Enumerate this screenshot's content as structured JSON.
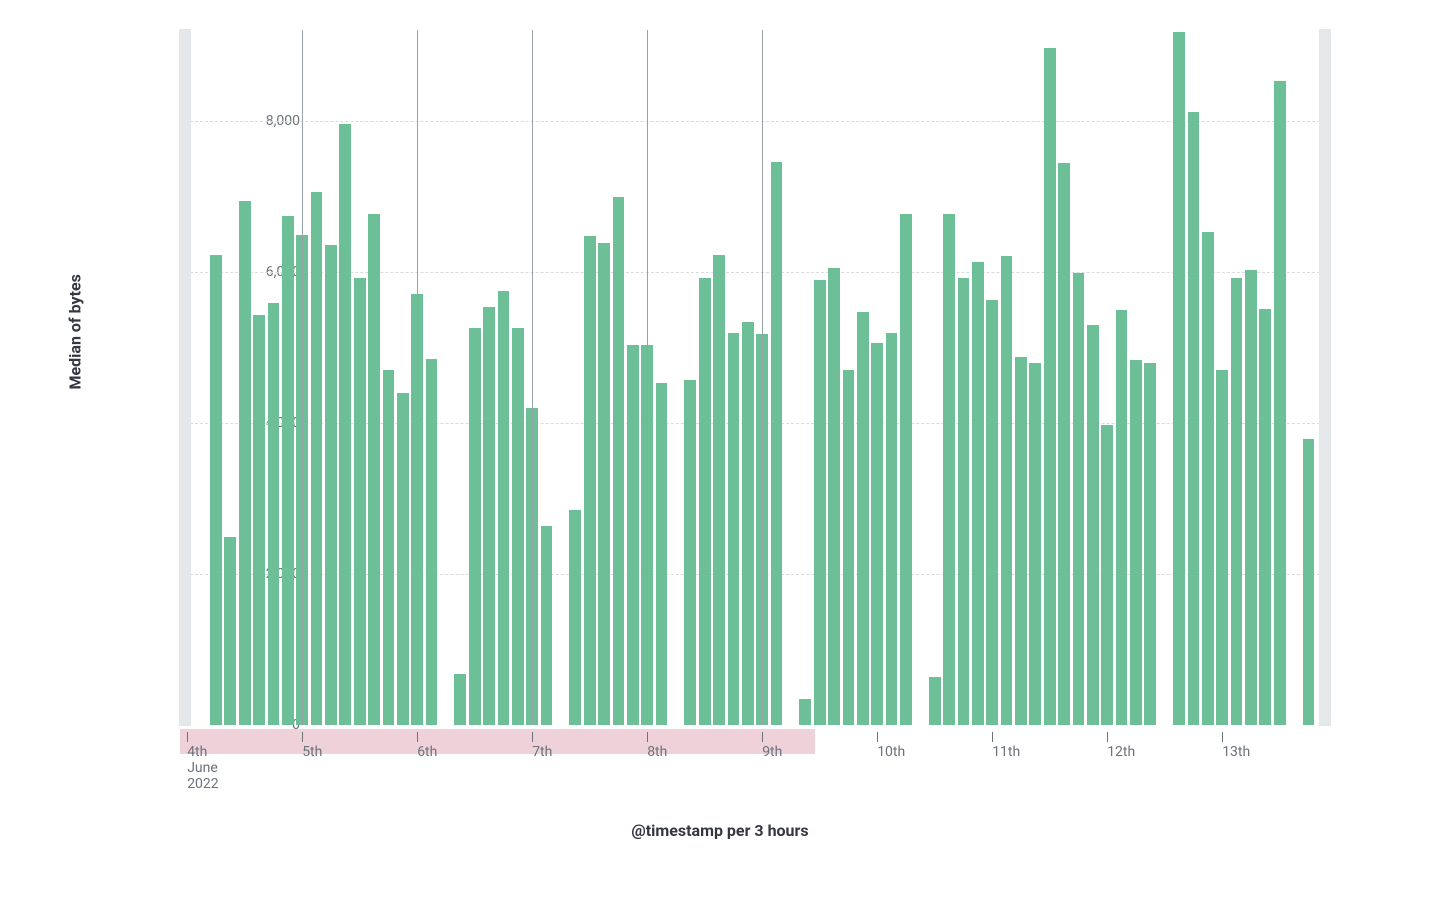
{
  "chart": {
    "type": "bar",
    "y_axis": {
      "label": "Median of bytes",
      "min": 0,
      "max": 9200,
      "ticks": [
        0,
        2000,
        4000,
        6000,
        8000
      ],
      "tick_labels": [
        "0",
        "2,000",
        "4,000",
        "6,000",
        "8,000"
      ],
      "label_fontsize": 16,
      "tick_fontsize": 14,
      "label_color": "#343741",
      "tick_color": "#6c727a",
      "grid_color": "#d8dcdd"
    },
    "x_axis": {
      "label": "@timestamp per 3 hours",
      "label_fontsize": 16,
      "label_color": "#343741",
      "tick_fontsize": 14,
      "tick_color": "#6c727a",
      "ticks": [
        {
          "pos": 0.5,
          "label": "4th",
          "sublabel1": "June",
          "sublabel2": "2022"
        },
        {
          "pos": 8.5,
          "label": "5th"
        },
        {
          "pos": 16.5,
          "label": "6th"
        },
        {
          "pos": 24.5,
          "label": "7th"
        },
        {
          "pos": 32.5,
          "label": "8th"
        },
        {
          "pos": 40.5,
          "label": "9th"
        },
        {
          "pos": 48.5,
          "label": "10th"
        },
        {
          "pos": 56.5,
          "label": "11th"
        },
        {
          "pos": 64.5,
          "label": "12th"
        },
        {
          "pos": 72.5,
          "label": "13th"
        }
      ],
      "gridline_positions": [
        8.5,
        16.5,
        24.5,
        32.5,
        40.5
      ],
      "highlight_start": 0,
      "highlight_end": 44.2,
      "highlight_color": "#efd1d9"
    },
    "bar_color": "#6dbf98",
    "background_color": "#ffffff",
    "partial_band_color": "#e5e8ea",
    "total_slots": 80,
    "bar_width_ratio": 0.82,
    "values": [
      null,
      null,
      6220,
      2490,
      6930,
      5430,
      5590,
      6740,
      6490,
      7050,
      6360,
      7960,
      5920,
      6770,
      4700,
      4390,
      5700,
      4840,
      null,
      680,
      5260,
      5530,
      5750,
      5260,
      4200,
      2640,
      null,
      2850,
      6470,
      6380,
      6990,
      5030,
      5030,
      4530,
      null,
      4570,
      5920,
      6220,
      5190,
      5340,
      5180,
      7450,
      null,
      340,
      5890,
      6050,
      4700,
      5470,
      5060,
      5190,
      6760,
      null,
      640,
      6760,
      5920,
      6130,
      5630,
      6210,
      4870,
      4790,
      8960,
      7440,
      5990,
      5300,
      3970,
      5500,
      4830,
      4790,
      null,
      9170,
      8120,
      6520,
      4700,
      5920,
      6020,
      5510,
      8520,
      null,
      3790,
      null
    ]
  }
}
